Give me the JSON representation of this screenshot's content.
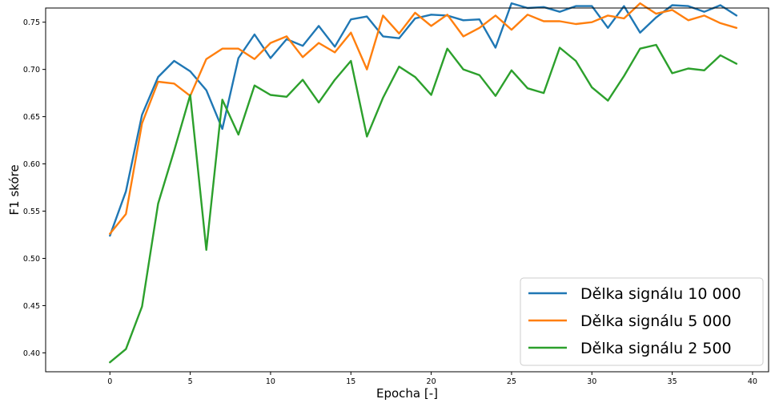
{
  "chart_data": {
    "type": "line",
    "xlabel": "Epocha [-]",
    "ylabel": "F1 skóre",
    "xlim": [
      -4,
      41
    ],
    "ylim": [
      0.38,
      0.765
    ],
    "xticks": [
      0,
      5,
      10,
      15,
      20,
      25,
      30,
      35,
      40
    ],
    "yticks": [
      0.4,
      0.45,
      0.5,
      0.55,
      0.6,
      0.65,
      0.7,
      0.75
    ],
    "ytick_labels": [
      "0.40",
      "0.45",
      "0.50",
      "0.55",
      "0.60",
      "0.65",
      "0.70",
      "0.75"
    ],
    "grid": false,
    "legend_position": "lower-right",
    "x": [
      0,
      1,
      2,
      3,
      4,
      5,
      6,
      7,
      8,
      9,
      10,
      11,
      12,
      13,
      14,
      15,
      16,
      17,
      18,
      19,
      20,
      21,
      22,
      23,
      24,
      25,
      26,
      27,
      28,
      29,
      30,
      31,
      32,
      33,
      34,
      35,
      36,
      37,
      38,
      39
    ],
    "series": [
      {
        "name": "Dělka signálu 10 000",
        "color": "#1f77b4",
        "values": [
          0.524,
          0.571,
          0.652,
          0.692,
          0.709,
          0.698,
          0.678,
          0.637,
          0.712,
          0.737,
          0.712,
          0.732,
          0.725,
          0.746,
          0.724,
          0.753,
          0.756,
          0.735,
          0.733,
          0.754,
          0.758,
          0.757,
          0.752,
          0.753,
          0.723,
          0.77,
          0.765,
          0.766,
          0.761,
          0.767,
          0.767,
          0.744,
          0.767,
          0.739,
          0.755,
          0.768,
          0.767,
          0.761,
          0.768,
          0.757
        ]
      },
      {
        "name": "Dělka signálu 5 000",
        "color": "#ff7f0e",
        "values": [
          0.526,
          0.547,
          0.643,
          0.687,
          0.685,
          0.672,
          0.711,
          0.722,
          0.722,
          0.711,
          0.728,
          0.735,
          0.713,
          0.728,
          0.718,
          0.739,
          0.7,
          0.757,
          0.738,
          0.76,
          0.746,
          0.758,
          0.735,
          0.744,
          0.757,
          0.742,
          0.758,
          0.751,
          0.751,
          0.748,
          0.75,
          0.757,
          0.754,
          0.77,
          0.759,
          0.763,
          0.752,
          0.757,
          0.749,
          0.744
        ]
      },
      {
        "name": "Dělka signálu 2 500",
        "color": "#2ca02c",
        "values": [
          0.39,
          0.404,
          0.449,
          0.558,
          0.614,
          0.673,
          0.509,
          0.668,
          0.631,
          0.683,
          0.673,
          0.671,
          0.689,
          0.665,
          0.689,
          0.709,
          0.629,
          0.67,
          0.703,
          0.692,
          0.673,
          0.722,
          0.7,
          0.694,
          0.672,
          0.699,
          0.68,
          0.675,
          0.723,
          0.709,
          0.681,
          0.667,
          0.693,
          0.722,
          0.726,
          0.696,
          0.701,
          0.699,
          0.715,
          0.706
        ]
      }
    ]
  }
}
